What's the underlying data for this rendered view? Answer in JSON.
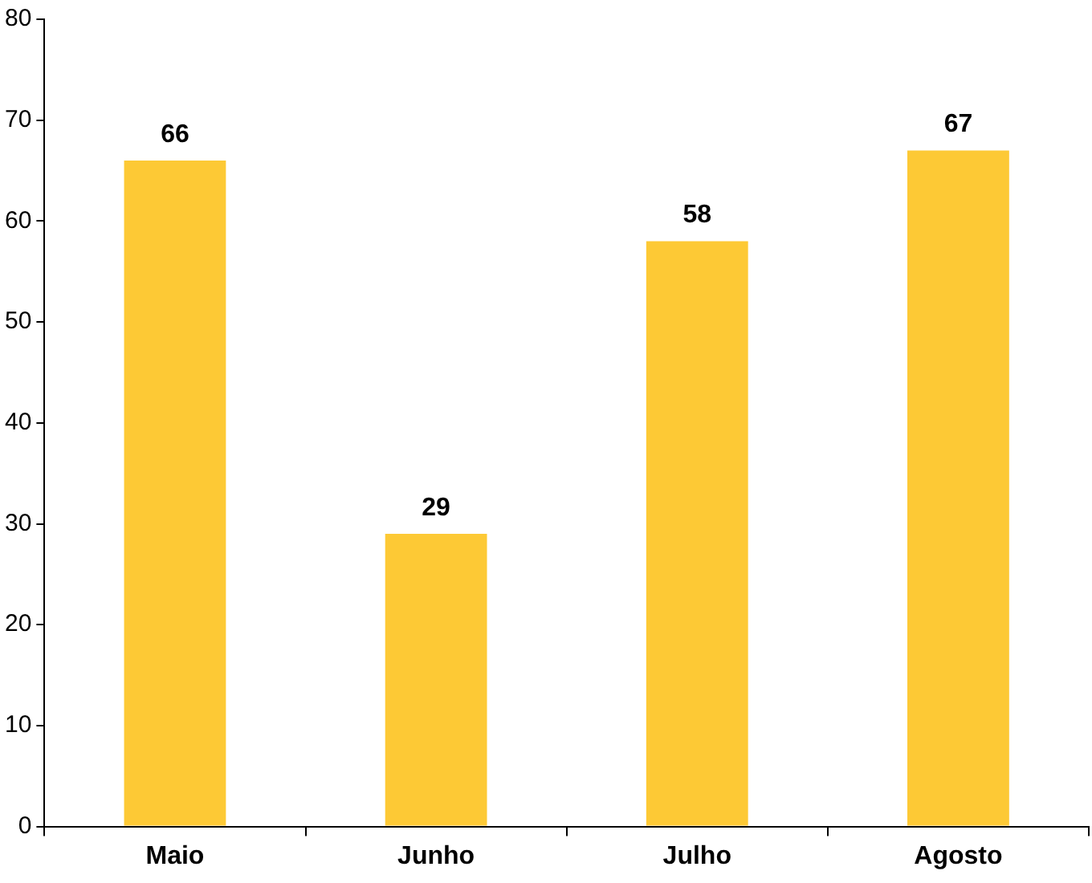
{
  "chart_data": {
    "type": "bar",
    "categories": [
      "Maio",
      "Junho",
      "Julho",
      "Agosto"
    ],
    "values": [
      66,
      29,
      58,
      67
    ],
    "color": "#fdc935",
    "ylim": [
      0,
      80
    ],
    "yticks": [
      0,
      10,
      20,
      30,
      40,
      50,
      60,
      70,
      80
    ],
    "grid": false,
    "legend": false,
    "data_labels": true
  }
}
